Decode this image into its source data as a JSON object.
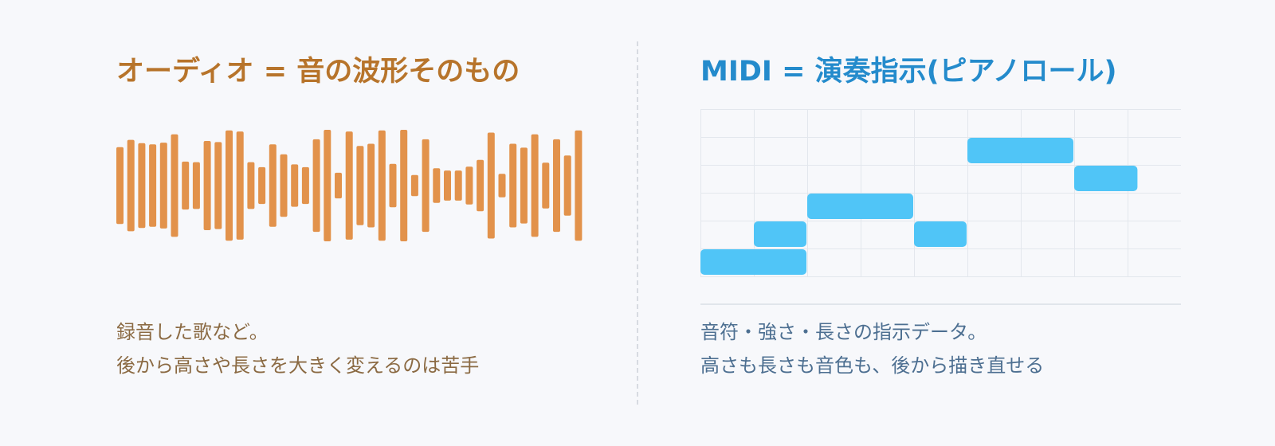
{
  "audio": {
    "heading": "オーディオ = 音の波形そのもの",
    "description": [
      "録音した歌など。",
      "後から高さや長さを大きく変える​のは苦手"
    ],
    "waveform": {
      "color": "#e2924b",
      "bar_levels": [
        0.69,
        0.82,
        0.76,
        0.74,
        0.77,
        0.92,
        0.43,
        0.42,
        0.8,
        0.78,
        0.99,
        0.97,
        0.42,
        0.33,
        0.74,
        0.56,
        0.38,
        0.33,
        0.83,
        1.0,
        0.23,
        0.97,
        0.71,
        0.75,
        0.99,
        0.39,
        1.0,
        0.19,
        0.83,
        0.31,
        0.27,
        0.27,
        0.34,
        0.46,
        0.95,
        0.21,
        0.75,
        0.68,
        0.92,
        0.41,
        0.83,
        0.54,
        0.99
      ]
    }
  },
  "midi": {
    "heading": "MIDI = 演奏指示(ピアノロール)",
    "description": [
      "音符・強さ・長さの指示データ。",
      "高さも長さも音色も、後から描き直せる"
    ],
    "piano_roll": {
      "grid_color": "#e3e7ed",
      "note_color": "#50c5f7",
      "columns": 9,
      "rows": 6,
      "notes": [
        {
          "row": 6,
          "start": 0,
          "length": 2
        },
        {
          "row": 5,
          "start": 1,
          "length": 1
        },
        {
          "row": 4,
          "start": 2,
          "length": 2
        },
        {
          "row": 5,
          "start": 4,
          "length": 1
        },
        {
          "row": 2,
          "start": 5,
          "length": 2
        },
        {
          "row": 3,
          "start": 7,
          "length": 1.2
        }
      ]
    }
  }
}
